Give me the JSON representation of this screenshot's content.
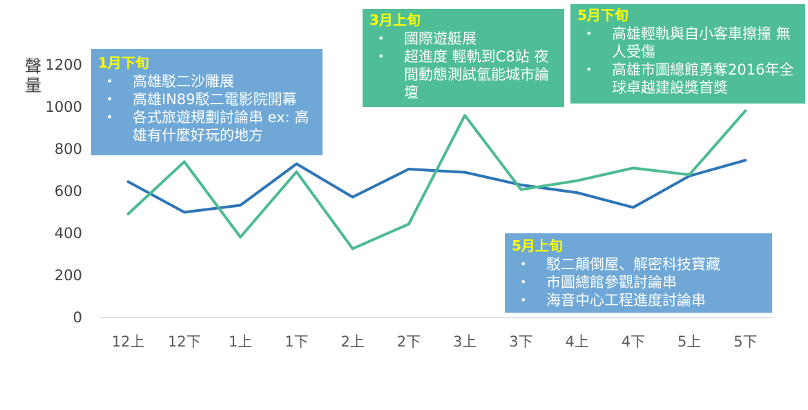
{
  "chart_data": {
    "type": "line",
    "ylabel": "聲量",
    "categories": [
      "12上",
      "12下",
      "1上",
      "1下",
      "2上",
      "2下",
      "3上",
      "3下",
      "4上",
      "4下",
      "5上",
      "5下"
    ],
    "yticks": [
      0,
      200,
      400,
      600,
      800,
      1000,
      1200
    ],
    "ylim": [
      0,
      1200
    ],
    "grid": false,
    "legend": "none",
    "series": [
      {
        "color": "#2e75b6",
        "values": [
          645,
          500,
          533,
          730,
          572,
          705,
          690,
          630,
          593,
          523,
          672,
          747
        ]
      },
      {
        "color": "#4cbb91",
        "values": [
          492,
          740,
          382,
          692,
          327,
          444,
          960,
          608,
          650,
          710,
          678,
          982
        ]
      }
    ],
    "annotations": [
      {
        "title": "1月下旬",
        "style": "blue",
        "items": [
          "高雄駁二沙雕展",
          "高雄IN89駁二電影院開幕",
          "各式旅遊規劃討論串 ex: 高雄有什麼好玩的地方"
        ]
      },
      {
        "title": "3月上旬",
        "style": "green",
        "items": [
          "國際遊艇展",
          "超進度 輕軌到C8站 夜間動態測試氫能城市論壇"
        ]
      },
      {
        "title": "5月下旬",
        "style": "green",
        "items": [
          "高雄輕軌與自小客車擦撞 無人受傷",
          "高雄市圖總館勇奪2016年全球卓越建設獎首獎"
        ]
      },
      {
        "title": "5月上旬",
        "style": "blue",
        "items": [
          "駁二顛倒屋、解密科技寶藏",
          "市圖總館參觀討論串",
          "海音中心工程進度討論串"
        ]
      }
    ]
  }
}
